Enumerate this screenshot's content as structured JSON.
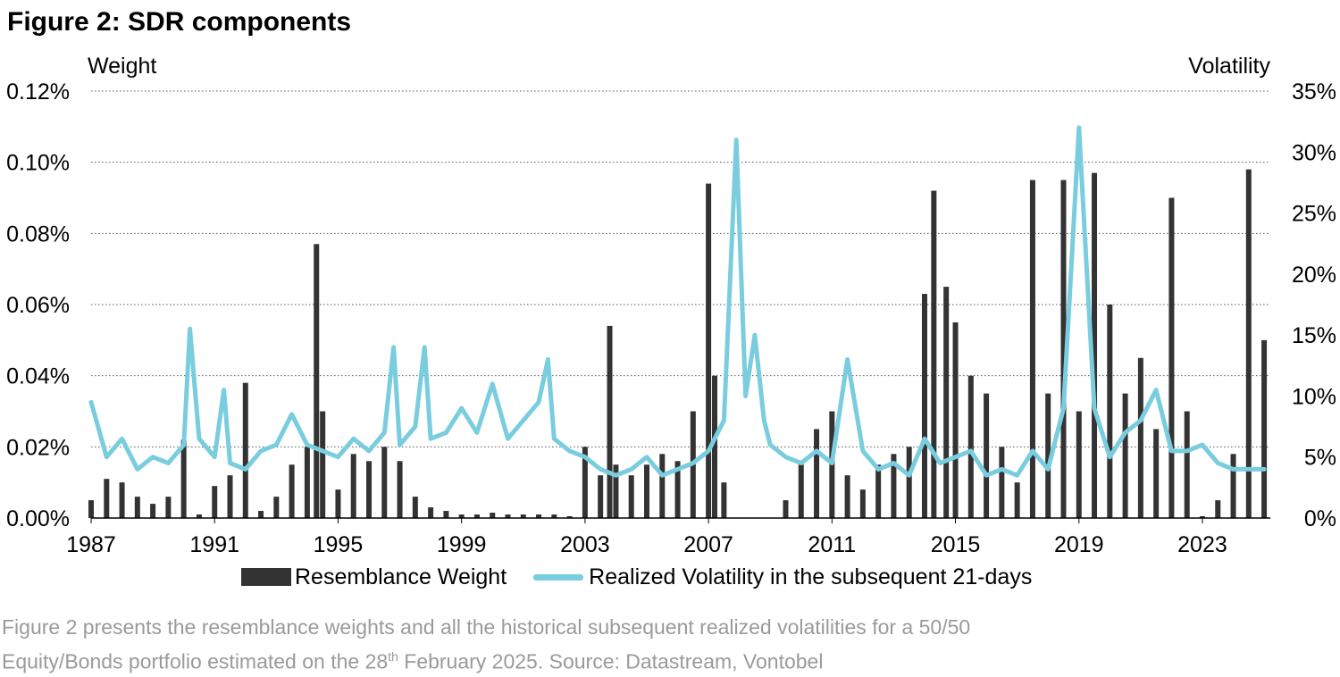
{
  "figure": {
    "title": "Figure 2: SDR components",
    "caption_line1": "Figure 2 presents the resemblance weights and all the historical subsequent realized volatilities for a 50/50",
    "caption_line2_a": "Equity/Bonds portfolio estimated on the 28",
    "caption_line2_sup": "th",
    "caption_line2_b": " February 2025. Source: Datastream, Vontobel"
  },
  "colors": {
    "weight": "#333333",
    "volatility": "#79cddf",
    "grid": "#555555"
  },
  "chart_data": {
    "type": "bar+line",
    "left_axis_label": "Weight",
    "right_axis_label": "Volatility",
    "x_ticks": [
      "1987",
      "1991",
      "1995",
      "1999",
      "2003",
      "2007",
      "2011",
      "2015",
      "2019",
      "2023"
    ],
    "xlim": [
      1987,
      2025.2
    ],
    "y_left": {
      "ylim": [
        0,
        0.12
      ],
      "ticks": [
        0,
        0.02,
        0.04,
        0.06,
        0.08,
        0.1,
        0.12
      ],
      "tick_labels": [
        "0.00%",
        "0.02%",
        "0.04%",
        "0.06%",
        "0.08%",
        "0.10%",
        "0.12%"
      ]
    },
    "y_right": {
      "ylim": [
        0,
        35
      ],
      "ticks": [
        0,
        5,
        10,
        15,
        20,
        25,
        30,
        35
      ],
      "tick_labels": [
        "0%",
        "5%",
        "10%",
        "15%",
        "20%",
        "25%",
        "30%",
        "35%"
      ]
    },
    "grid": "dotted horizontal",
    "legend_position": "bottom",
    "series": [
      {
        "name": "Resemblance Weight",
        "kind": "bar",
        "axis": "left",
        "x": [
          1987.0,
          1987.5,
          1988.0,
          1988.5,
          1989.0,
          1989.5,
          1990.0,
          1990.5,
          1991.0,
          1991.5,
          1992.0,
          1992.5,
          1993.0,
          1993.5,
          1994.0,
          1994.3,
          1994.5,
          1995.0,
          1995.5,
          1996.0,
          1996.5,
          1997.0,
          1997.5,
          1998.0,
          1998.5,
          1999.0,
          1999.5,
          2000.0,
          2000.5,
          2001.0,
          2001.5,
          2002.0,
          2002.5,
          2003.0,
          2003.5,
          2003.8,
          2004.0,
          2004.5,
          2005.0,
          2005.5,
          2006.0,
          2006.5,
          2007.0,
          2007.2,
          2007.5,
          2008.0,
          2008.5,
          2009.0,
          2009.5,
          2010.0,
          2010.5,
          2011.0,
          2011.5,
          2012.0,
          2012.5,
          2013.0,
          2013.5,
          2014.0,
          2014.3,
          2014.7,
          2015.0,
          2015.5,
          2016.0,
          2016.5,
          2017.0,
          2017.5,
          2018.0,
          2018.5,
          2019.0,
          2019.5,
          2020.0,
          2020.5,
          2021.0,
          2021.5,
          2022.0,
          2022.5,
          2023.0,
          2023.5,
          2024.0,
          2024.5,
          2025.0
        ],
        "values": [
          0.005,
          0.011,
          0.01,
          0.006,
          0.004,
          0.006,
          0.022,
          0.001,
          0.009,
          0.012,
          0.038,
          0.002,
          0.006,
          0.015,
          0.02,
          0.077,
          0.03,
          0.008,
          0.018,
          0.016,
          0.02,
          0.016,
          0.006,
          0.003,
          0.002,
          0.001,
          0.001,
          0.0015,
          0.001,
          0.001,
          0.001,
          0.001,
          0.0005,
          0.02,
          0.012,
          0.054,
          0.015,
          0.012,
          0.015,
          0.018,
          0.016,
          0.03,
          0.094,
          0.04,
          0.01,
          0.0,
          0.0,
          0.0,
          0.005,
          0.015,
          0.025,
          0.03,
          0.012,
          0.008,
          0.015,
          0.018,
          0.02,
          0.063,
          0.092,
          0.065,
          0.055,
          0.04,
          0.035,
          0.02,
          0.01,
          0.095,
          0.035,
          0.095,
          0.03,
          0.097,
          0.06,
          0.035,
          0.045,
          0.025,
          0.09,
          0.03,
          0.0005,
          0.005,
          0.018,
          0.098,
          0.05
        ]
      },
      {
        "name": "Realized Volatility in the subsequent 21-days",
        "kind": "line",
        "axis": "right",
        "x": [
          1987.0,
          1987.5,
          1988.0,
          1988.5,
          1989.0,
          1989.5,
          1990.0,
          1990.2,
          1990.5,
          1991.0,
          1991.3,
          1991.5,
          1992.0,
          1992.5,
          1993.0,
          1993.5,
          1994.0,
          1994.5,
          1995.0,
          1995.5,
          1996.0,
          1996.5,
          1996.8,
          1997.0,
          1997.5,
          1997.8,
          1998.0,
          1998.5,
          1999.0,
          1999.5,
          2000.0,
          2000.5,
          2001.0,
          2001.5,
          2001.8,
          2002.0,
          2002.5,
          2003.0,
          2003.5,
          2004.0,
          2004.5,
          2005.0,
          2005.5,
          2006.0,
          2006.5,
          2007.0,
          2007.5,
          2007.9,
          2008.2,
          2008.5,
          2008.8,
          2009.0,
          2009.5,
          2010.0,
          2010.5,
          2011.0,
          2011.5,
          2012.0,
          2012.5,
          2013.0,
          2013.5,
          2014.0,
          2014.5,
          2015.0,
          2015.5,
          2016.0,
          2016.5,
          2017.0,
          2017.5,
          2018.0,
          2018.5,
          2019.0,
          2019.5,
          2020.0,
          2020.5,
          2021.0,
          2021.5,
          2022.0,
          2022.5,
          2023.0,
          2023.5,
          2024.0,
          2024.5,
          2025.0
        ],
        "values": [
          9.5,
          5.0,
          6.5,
          4.0,
          5.0,
          4.5,
          6.0,
          15.5,
          6.5,
          5.0,
          10.5,
          4.5,
          4.0,
          5.5,
          6.0,
          8.5,
          6.0,
          5.5,
          5.0,
          6.5,
          5.5,
          7.0,
          14.0,
          6.0,
          7.5,
          14.0,
          6.5,
          7.0,
          9.0,
          7.0,
          11.0,
          6.5,
          8.0,
          9.5,
          13.0,
          6.5,
          5.5,
          5.0,
          4.0,
          3.5,
          4.0,
          5.0,
          3.5,
          4.0,
          4.5,
          5.5,
          8.0,
          31.0,
          10.0,
          15.0,
          8.0,
          6.0,
          5.0,
          4.5,
          5.5,
          4.5,
          13.0,
          5.5,
          4.0,
          4.5,
          3.5,
          6.5,
          4.5,
          5.0,
          5.5,
          3.5,
          4.0,
          3.5,
          5.5,
          4.0,
          9.0,
          32.0,
          9.0,
          5.0,
          7.0,
          8.0,
          10.5,
          5.5,
          5.5,
          6.0,
          4.5,
          4.0,
          4.0,
          4.0
        ]
      }
    ]
  }
}
